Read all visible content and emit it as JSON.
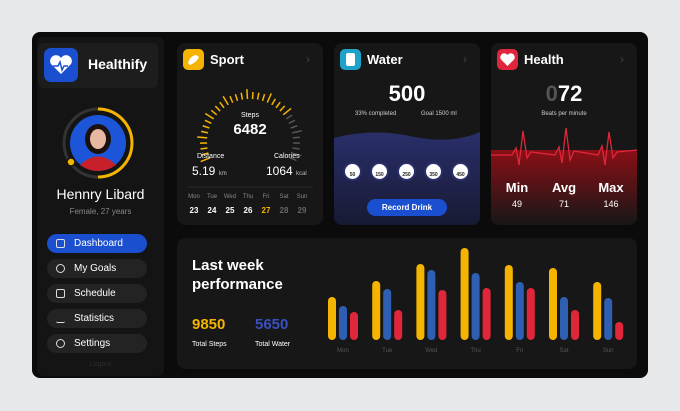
{
  "app": {
    "name": "Healthify"
  },
  "profile": {
    "name": "Hennry Libard",
    "details": "Female, 27 years"
  },
  "nav": [
    "Dashboard",
    "My Goals",
    "Schedule",
    "Statistics",
    "Settings"
  ],
  "logout": "Logout",
  "sport": {
    "title": "Sport",
    "steps_label": "Steps",
    "steps": 6482,
    "distance_label": "Distance",
    "distance": 5.19,
    "distance_unit": "km",
    "calories_label": "Calories",
    "calories": 1064,
    "calories_unit": "kcal",
    "days": [
      "Mon",
      "Tue",
      "Wed",
      "Thu",
      "Fri",
      "Sat",
      "Sun"
    ],
    "dates": [
      23,
      24,
      25,
      26,
      27,
      28,
      29
    ]
  },
  "water": {
    "title": "Water",
    "amount": 500,
    "completed": "33% completed",
    "goal": "Goal 1500 ml",
    "glasses": [
      50,
      150,
      250,
      350,
      450
    ],
    "button": "Record Drink"
  },
  "health": {
    "title": "Health",
    "bpm_lead": "0",
    "bpm": 72,
    "bpm_label": "Beats per minute",
    "stats": [
      {
        "label": "Min",
        "value": 49
      },
      {
        "label": "Avg",
        "value": 71
      },
      {
        "label": "Max",
        "value": 146
      }
    ]
  },
  "performance": {
    "title": "Last week performance",
    "total_steps": 9850,
    "total_steps_label": "Total Steps",
    "total_water": 5650,
    "total_water_label": "Total Water",
    "chart_data": {
      "type": "bar",
      "categories": [
        "Mon",
        "Tue",
        "Wed",
        "Thu",
        "Fri",
        "Sat",
        "Sun"
      ],
      "ylim": [
        0,
        100
      ],
      "series": [
        {
          "color": "#f5b400",
          "values": [
            43,
            59,
            76,
            92,
            75,
            72,
            58
          ]
        },
        {
          "color": "#2f5fb3",
          "values": [
            34,
            51,
            70,
            67,
            58,
            43,
            42
          ]
        },
        {
          "color": "#e0263a",
          "values": [
            28,
            30,
            50,
            52,
            52,
            30,
            18
          ]
        }
      ]
    }
  }
}
